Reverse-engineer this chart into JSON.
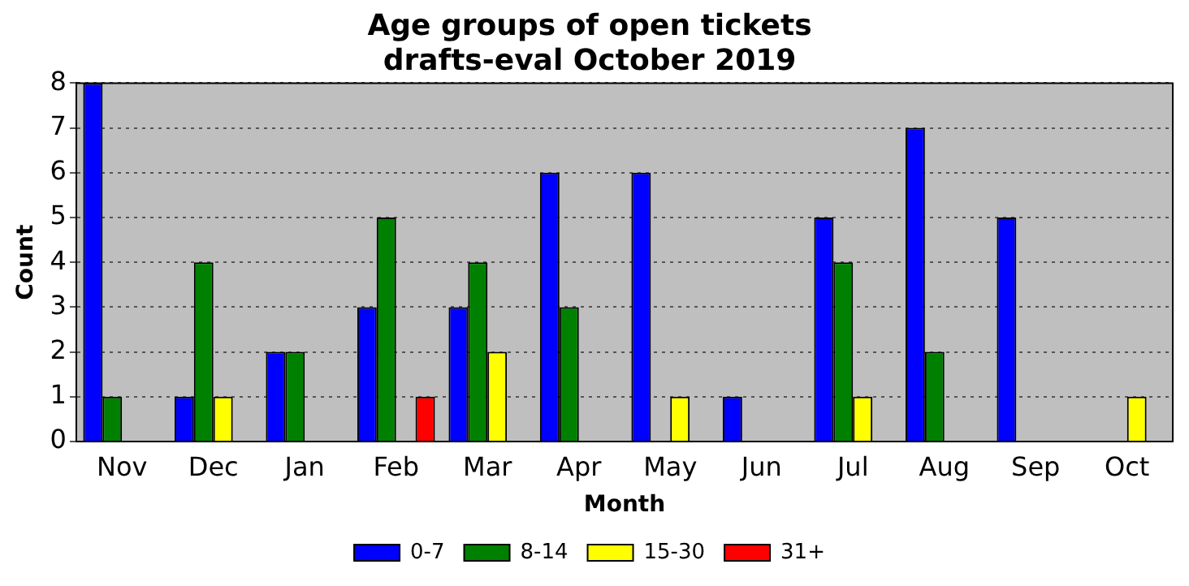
{
  "chart_data": {
    "type": "bar",
    "title": "Age groups of open tickets\ndrafts-eval October 2019",
    "xlabel": "Month",
    "ylabel": "Count",
    "categories": [
      "Nov",
      "Dec",
      "Jan",
      "Feb",
      "Mar",
      "Apr",
      "May",
      "Jun",
      "Jul",
      "Aug",
      "Sep",
      "Oct"
    ],
    "series": [
      {
        "name": "0-7",
        "color": "#0000ff",
        "values": [
          8,
          1,
          2,
          3,
          3,
          6,
          6,
          1,
          5,
          7,
          5,
          0
        ]
      },
      {
        "name": "8-14",
        "color": "#008000",
        "values": [
          1,
          4,
          2,
          5,
          4,
          3,
          0,
          0,
          4,
          2,
          0,
          0
        ]
      },
      {
        "name": "15-30",
        "color": "#ffff00",
        "values": [
          0,
          1,
          0,
          0,
          2,
          0,
          1,
          0,
          1,
          0,
          0,
          1
        ]
      },
      {
        "name": "31+",
        "color": "#ff0000",
        "values": [
          0,
          0,
          0,
          1,
          0,
          0,
          0,
          0,
          0,
          0,
          0,
          0
        ]
      }
    ],
    "ylim": [
      0,
      8
    ],
    "yticks": [
      0,
      1,
      2,
      3,
      4,
      5,
      6,
      7,
      8
    ],
    "grid": "y",
    "legend": "bottom"
  }
}
